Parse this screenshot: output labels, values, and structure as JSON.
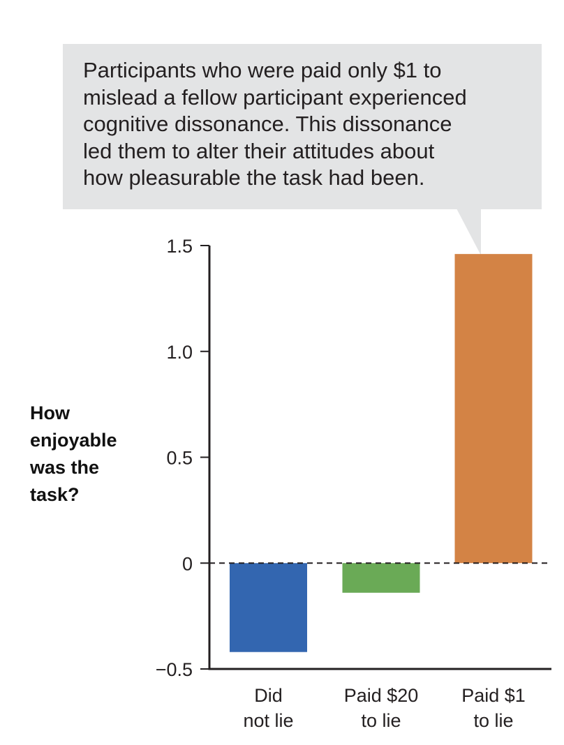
{
  "callout": {
    "lines": [
      "Participants who were paid only $1 to",
      "mislead a fellow participant experienced",
      "cognitive dissonance. This dissonance",
      "led them to alter their attitudes about",
      "how pleasurable the task had been."
    ]
  },
  "chart_data": {
    "type": "bar",
    "ylabel_lines": [
      "How",
      "enjoyable",
      "was the",
      "task?"
    ],
    "categories": [
      [
        "Did",
        "not lie"
      ],
      [
        "Paid $20",
        "to lie"
      ],
      [
        "Paid $1",
        "to lie"
      ]
    ],
    "values": [
      -0.42,
      -0.14,
      1.46
    ],
    "colors": [
      "#3366b0",
      "#6aaa56",
      "#d38345"
    ],
    "ylim": [
      -0.5,
      1.5
    ],
    "yticks": [
      {
        "value": 1.5,
        "label": "1.5"
      },
      {
        "value": 1.0,
        "label": "1.0"
      },
      {
        "value": 0.5,
        "label": "0.5"
      },
      {
        "value": 0,
        "label": "0"
      },
      {
        "value": -0.5,
        "label": "−0.5"
      }
    ],
    "zero_line": "dashed",
    "grid": false,
    "legend": "none"
  }
}
